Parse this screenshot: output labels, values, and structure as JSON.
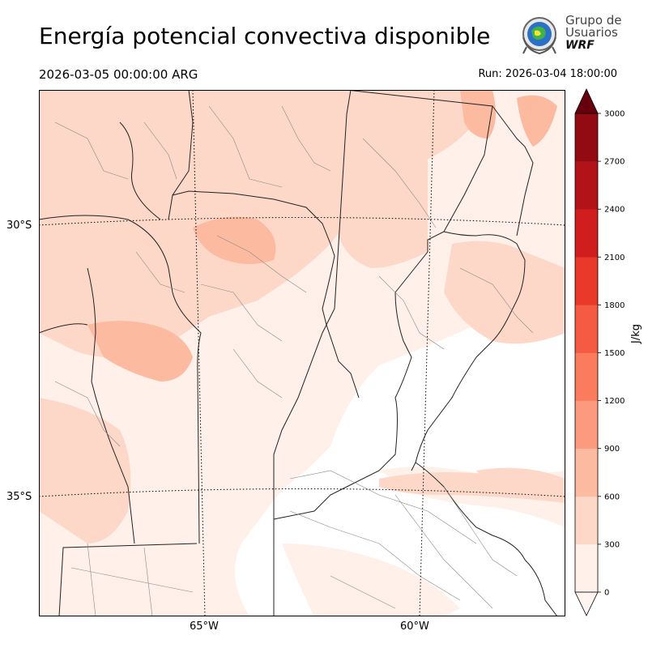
{
  "title": "Energía potencial convectiva disponible",
  "valid_time": "2026-03-05 00:00:00 ARG",
  "run_time": "Run: 2026-03-04 18:00:00",
  "logo": {
    "line1": "Grupo de",
    "line2": "Usuarios",
    "line3": "WRF"
  },
  "lat_labels": [
    "30°S",
    "35°S"
  ],
  "lon_labels": [
    "65°W",
    "60°W"
  ],
  "colorbar": {
    "unit": "J/kg",
    "ticks": [
      "0",
      "300",
      "600",
      "900",
      "1200",
      "1500",
      "1800",
      "2100",
      "2400",
      "2700",
      "3000"
    ],
    "colors": [
      "#fff0ea",
      "#fdd8c8",
      "#fcbba1",
      "#fc9a7f",
      "#fb7b5f",
      "#f55a42",
      "#e8392b",
      "#d01d1e",
      "#b21318",
      "#920a12"
    ],
    "extend_max_color": "#67000d",
    "extend_min_color": "#fff5f0"
  }
}
